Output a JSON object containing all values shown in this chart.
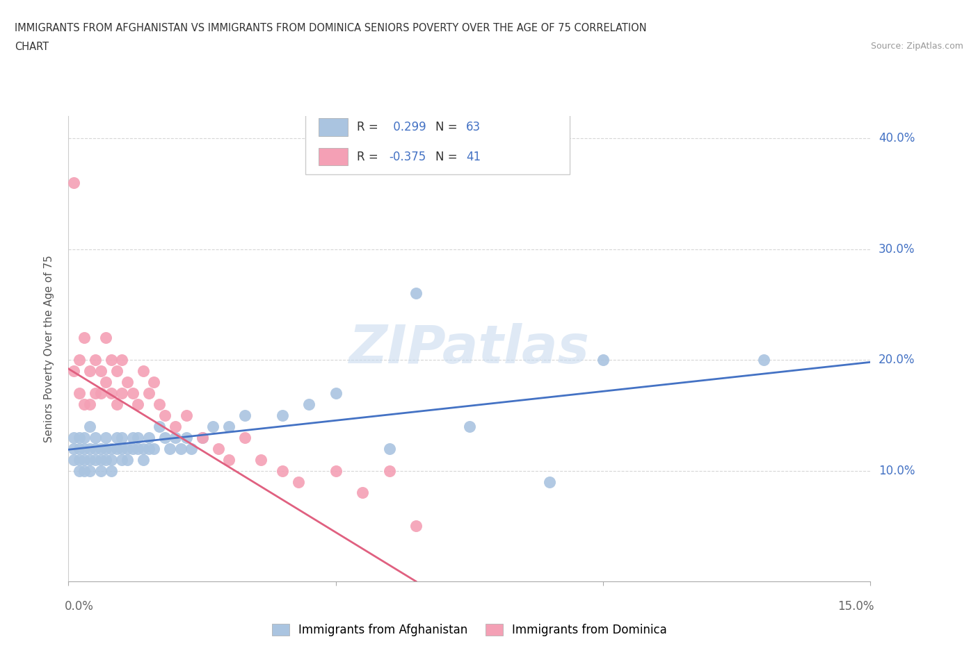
{
  "title_line1": "IMMIGRANTS FROM AFGHANISTAN VS IMMIGRANTS FROM DOMINICA SENIORS POVERTY OVER THE AGE OF 75 CORRELATION",
  "title_line2": "CHART",
  "source_text": "Source: ZipAtlas.com",
  "ylabel": "Seniors Poverty Over the Age of 75",
  "xlim": [
    0.0,
    0.15
  ],
  "ylim": [
    0.0,
    0.42
  ],
  "xtick_positions": [
    0.0,
    0.05,
    0.1,
    0.15
  ],
  "xtick_labels": [
    "0.0%",
    "",
    "",
    "15.0%"
  ],
  "ytick_positions": [
    0.1,
    0.2,
    0.3,
    0.4
  ],
  "ytick_labels": [
    "10.0%",
    "20.0%",
    "30.0%",
    "40.0%"
  ],
  "afghanistan_R": 0.299,
  "afghanistan_N": 63,
  "dominica_R": -0.375,
  "dominica_N": 41,
  "afghanistan_color": "#aac4e0",
  "dominica_color": "#f4a0b5",
  "afghanistan_line_color": "#4472c4",
  "dominica_line_color": "#e06080",
  "watermark_text": "ZIPatlas",
  "legend_x_label": "Immigrants from Afghanistan",
  "legend_d_label": "Immigrants from Dominica",
  "afghanistan_x": [
    0.001,
    0.001,
    0.001,
    0.002,
    0.002,
    0.002,
    0.002,
    0.003,
    0.003,
    0.003,
    0.003,
    0.004,
    0.004,
    0.004,
    0.004,
    0.005,
    0.005,
    0.005,
    0.006,
    0.006,
    0.006,
    0.007,
    0.007,
    0.007,
    0.008,
    0.008,
    0.008,
    0.009,
    0.009,
    0.01,
    0.01,
    0.01,
    0.011,
    0.011,
    0.012,
    0.012,
    0.013,
    0.013,
    0.014,
    0.014,
    0.015,
    0.015,
    0.016,
    0.017,
    0.018,
    0.019,
    0.02,
    0.021,
    0.022,
    0.023,
    0.025,
    0.027,
    0.03,
    0.033,
    0.04,
    0.045,
    0.05,
    0.06,
    0.065,
    0.075,
    0.09,
    0.1,
    0.13
  ],
  "afghanistan_y": [
    0.12,
    0.11,
    0.13,
    0.12,
    0.11,
    0.1,
    0.13,
    0.12,
    0.11,
    0.1,
    0.13,
    0.12,
    0.11,
    0.1,
    0.14,
    0.13,
    0.12,
    0.11,
    0.12,
    0.11,
    0.1,
    0.13,
    0.12,
    0.11,
    0.12,
    0.11,
    0.1,
    0.13,
    0.12,
    0.12,
    0.11,
    0.13,
    0.12,
    0.11,
    0.13,
    0.12,
    0.12,
    0.13,
    0.12,
    0.11,
    0.12,
    0.13,
    0.12,
    0.14,
    0.13,
    0.12,
    0.13,
    0.12,
    0.13,
    0.12,
    0.13,
    0.14,
    0.14,
    0.15,
    0.15,
    0.16,
    0.17,
    0.12,
    0.26,
    0.14,
    0.09,
    0.2,
    0.2
  ],
  "dominica_x": [
    0.001,
    0.001,
    0.002,
    0.002,
    0.003,
    0.003,
    0.004,
    0.004,
    0.005,
    0.005,
    0.006,
    0.006,
    0.007,
    0.007,
    0.008,
    0.008,
    0.009,
    0.009,
    0.01,
    0.01,
    0.011,
    0.012,
    0.013,
    0.014,
    0.015,
    0.016,
    0.017,
    0.018,
    0.02,
    0.022,
    0.025,
    0.028,
    0.03,
    0.033,
    0.036,
    0.04,
    0.043,
    0.05,
    0.055,
    0.06,
    0.065
  ],
  "dominica_y": [
    0.36,
    0.19,
    0.2,
    0.17,
    0.22,
    0.16,
    0.19,
    0.16,
    0.2,
    0.17,
    0.19,
    0.17,
    0.22,
    0.18,
    0.2,
    0.17,
    0.19,
    0.16,
    0.2,
    0.17,
    0.18,
    0.17,
    0.16,
    0.19,
    0.17,
    0.18,
    0.16,
    0.15,
    0.14,
    0.15,
    0.13,
    0.12,
    0.11,
    0.13,
    0.11,
    0.1,
    0.09,
    0.1,
    0.08,
    0.1,
    0.05
  ],
  "af_line_x0": 0.0,
  "af_line_x1": 0.15,
  "af_line_y0": 0.119,
  "af_line_y1": 0.198,
  "dom_line_x0": 0.0,
  "dom_line_x1": 0.065,
  "dom_line_y0": 0.192,
  "dom_line_y1": 0.0
}
